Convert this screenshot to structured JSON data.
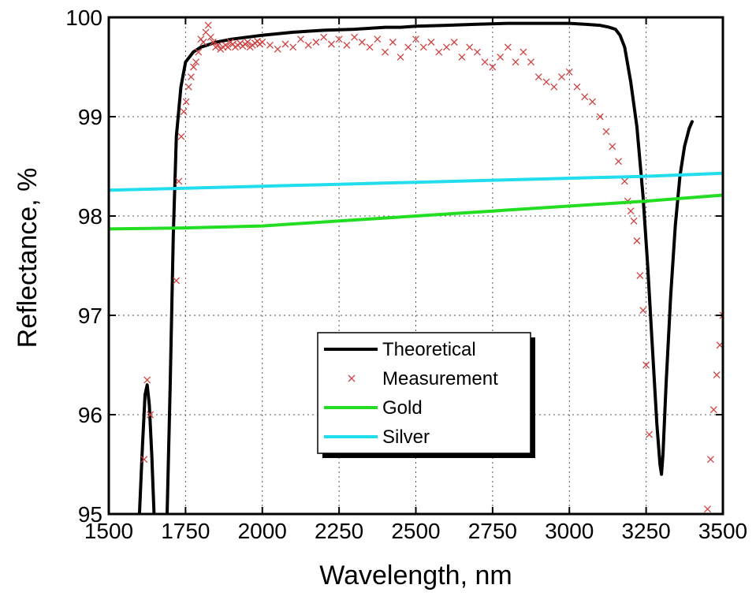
{
  "chart_data": {
    "type": "line",
    "title": "",
    "xlabel": "Wavelength, nm",
    "ylabel": "Reflectance, %",
    "xlim": [
      1500,
      3500
    ],
    "ylim": [
      95,
      100
    ],
    "x_ticks": [
      1500,
      1750,
      2000,
      2250,
      2500,
      2750,
      3000,
      3250,
      3500
    ],
    "y_ticks": [
      95,
      96,
      97,
      98,
      99,
      100
    ],
    "x_tick_labels": [
      "1500",
      "1750",
      "2000",
      "2250",
      "2500",
      "2750",
      "3000",
      "3250",
      "3500"
    ],
    "y_tick_labels": [
      "95",
      "96",
      "97",
      "98",
      "99",
      "100"
    ],
    "grid": true,
    "grid_style": "dotted",
    "legend": {
      "position": "bottom-center",
      "entries": [
        "Theoretical",
        "Measurement",
        "Gold",
        "Silver"
      ]
    },
    "series": [
      {
        "name": "Theoretical",
        "kind": "line",
        "color": "#000000",
        "x": [
          1590,
          1600,
          1610,
          1618,
          1625,
          1632,
          1640,
          1650,
          1665,
          1680,
          1690,
          1700,
          1710,
          1720,
          1735,
          1750,
          1775,
          1800,
          1850,
          1900,
          2000,
          2100,
          2200,
          2300,
          2400,
          2450,
          2500,
          2600,
          2700,
          2800,
          2900,
          3000,
          3050,
          3100,
          3130,
          3150,
          3165,
          3180,
          3200,
          3220,
          3240,
          3255,
          3270,
          3285,
          3295,
          3300,
          3305,
          3315,
          3330,
          3345,
          3360,
          3375,
          3390,
          3400
        ],
        "y": [
          94.5,
          95.0,
          95.7,
          96.2,
          96.3,
          96.1,
          95.6,
          94.8,
          94.2,
          94.4,
          95.0,
          96.3,
          97.8,
          98.8,
          99.3,
          99.55,
          99.65,
          99.7,
          99.75,
          99.78,
          99.82,
          99.85,
          99.87,
          99.88,
          99.9,
          99.9,
          99.91,
          99.92,
          99.93,
          99.94,
          99.94,
          99.94,
          99.93,
          99.92,
          99.9,
          99.88,
          99.82,
          99.7,
          99.35,
          98.9,
          98.2,
          97.5,
          96.7,
          95.9,
          95.5,
          95.4,
          95.6,
          96.3,
          97.2,
          97.9,
          98.4,
          98.7,
          98.88,
          98.95
        ]
      },
      {
        "name": "Measurement",
        "kind": "scatter",
        "color": "#d04040",
        "x": [
          1615,
          1625,
          1635,
          1720,
          1728,
          1736,
          1744,
          1752,
          1760,
          1768,
          1776,
          1784,
          1792,
          1800,
          1808,
          1816,
          1824,
          1832,
          1840,
          1848,
          1856,
          1864,
          1872,
          1880,
          1888,
          1896,
          1904,
          1912,
          1920,
          1928,
          1936,
          1944,
          1952,
          1960,
          1968,
          1976,
          1984,
          1992,
          2000,
          2025,
          2050,
          2075,
          2100,
          2125,
          2150,
          2175,
          2200,
          2225,
          2250,
          2275,
          2300,
          2325,
          2350,
          2375,
          2400,
          2425,
          2450,
          2475,
          2500,
          2525,
          2550,
          2575,
          2600,
          2625,
          2650,
          2675,
          2700,
          2725,
          2750,
          2775,
          2800,
          2825,
          2850,
          2875,
          2900,
          2925,
          2950,
          2975,
          3000,
          3025,
          3050,
          3075,
          3100,
          3120,
          3140,
          3160,
          3180,
          3190,
          3200,
          3210,
          3220,
          3230,
          3240,
          3250,
          3260,
          3270,
          3450,
          3460,
          3470,
          3480,
          3490,
          3500,
          3510
        ],
        "y": [
          95.55,
          96.35,
          96.0,
          97.35,
          98.35,
          98.8,
          99.05,
          99.15,
          99.3,
          99.4,
          99.5,
          99.55,
          99.65,
          99.78,
          99.75,
          99.85,
          99.92,
          99.8,
          99.75,
          99.7,
          99.72,
          99.68,
          99.7,
          99.72,
          99.7,
          99.75,
          99.73,
          99.7,
          99.72,
          99.74,
          99.71,
          99.73,
          99.75,
          99.7,
          99.72,
          99.74,
          99.76,
          99.73,
          99.75,
          99.72,
          99.68,
          99.73,
          99.7,
          99.78,
          99.72,
          99.75,
          99.8,
          99.73,
          99.78,
          99.72,
          99.8,
          99.75,
          99.7,
          99.78,
          99.65,
          99.75,
          99.6,
          99.7,
          99.78,
          99.7,
          99.75,
          99.65,
          99.7,
          99.75,
          99.6,
          99.7,
          99.65,
          99.55,
          99.5,
          99.6,
          99.7,
          99.55,
          99.65,
          99.55,
          99.4,
          99.35,
          99.3,
          99.4,
          99.45,
          99.3,
          99.2,
          99.15,
          99.0,
          98.85,
          98.7,
          98.55,
          98.35,
          98.15,
          98.05,
          97.95,
          97.75,
          97.4,
          97.05,
          96.5,
          95.8,
          94.95,
          95.05,
          95.55,
          96.05,
          96.4,
          96.7,
          97.0,
          97.1
        ]
      },
      {
        "name": "Gold",
        "kind": "line",
        "color": "#22dd22",
        "x": [
          1500,
          1750,
          2000,
          2250,
          2500,
          2750,
          3000,
          3250,
          3500
        ],
        "y": [
          97.87,
          97.88,
          97.9,
          97.95,
          98.0,
          98.05,
          98.1,
          98.15,
          98.21
        ]
      },
      {
        "name": "Silver",
        "kind": "line",
        "color": "#22ddee",
        "x": [
          1500,
          1750,
          2000,
          2250,
          2500,
          2750,
          3000,
          3250,
          3500
        ],
        "y": [
          98.26,
          98.28,
          98.3,
          98.32,
          98.34,
          98.36,
          98.38,
          98.4,
          98.43
        ]
      }
    ]
  }
}
